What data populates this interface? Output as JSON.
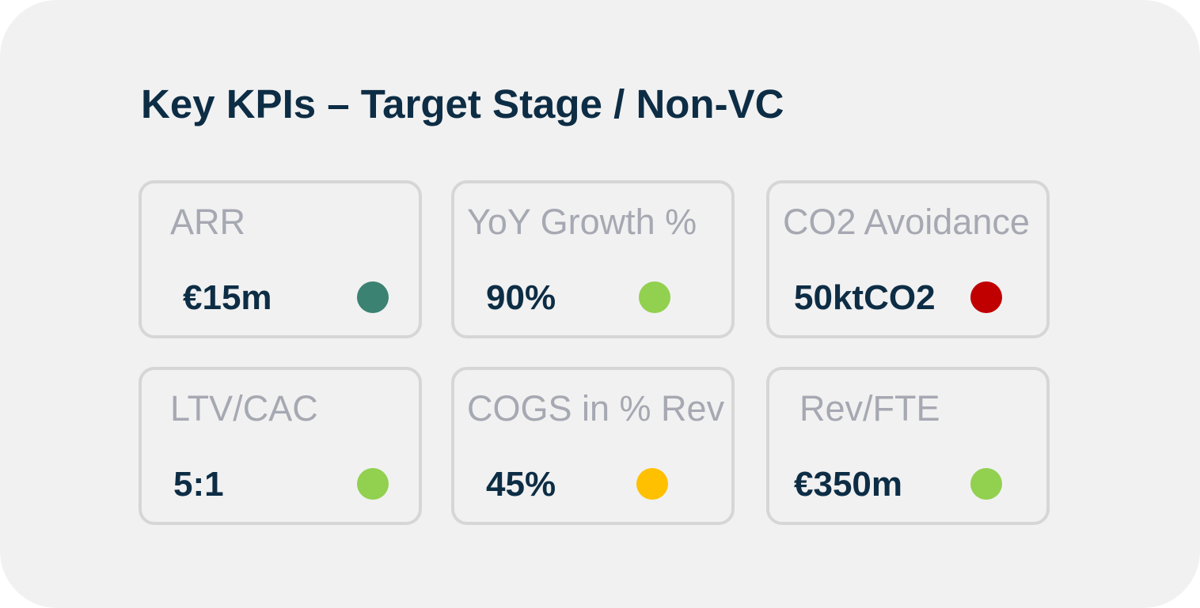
{
  "title": "Key KPIs – Target Stage / Non-VC",
  "kpis": [
    {
      "label": "ARR",
      "value": "€15m",
      "status_color": "#3b8272"
    },
    {
      "label": "YoY Growth %",
      "value": "90%",
      "status_color": "#92d050"
    },
    {
      "label": "CO2 Avoidance",
      "value": "50ktCO2",
      "status_color": "#c00000"
    },
    {
      "label": "LTV/CAC",
      "value": "5:1",
      "status_color": "#92d050"
    },
    {
      "label": "COGS in % Rev",
      "value": "45%",
      "status_color": "#ffc000"
    },
    {
      "label": "Rev/FTE",
      "value": "€350m",
      "status_color": "#92d050"
    }
  ]
}
